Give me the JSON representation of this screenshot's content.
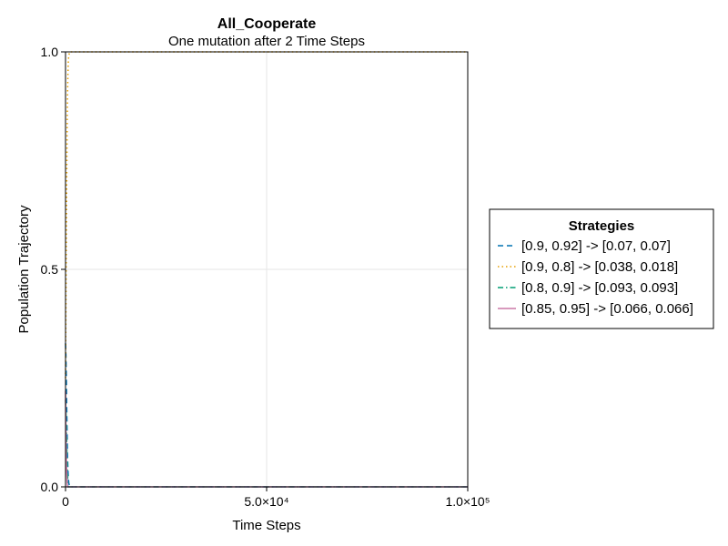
{
  "chart_data": {
    "type": "line",
    "title": "All_Cooperate",
    "subtitle": "One mutation after 2 Time Steps",
    "xlabel": "Time Steps",
    "ylabel": "Population Trajectory",
    "xlim": [
      0,
      100000
    ],
    "ylim": [
      0,
      1
    ],
    "grid": true,
    "x_ticks": [
      0,
      50000,
      100000
    ],
    "x_tick_labels": [
      "0",
      "5.0×10⁴",
      "1.0×10⁵"
    ],
    "y_ticks": [
      0,
      0.5,
      1
    ],
    "y_tick_labels": [
      "0.0",
      "0.5",
      "1.0"
    ],
    "legend": {
      "title": "Strategies",
      "placement": "right"
    },
    "series": [
      {
        "name": "[0.9, 0.92] -> [0.07, 0.07]",
        "color": "#0072b2",
        "dash": "dashed",
        "x": [
          0,
          100,
          200,
          300,
          400,
          500,
          600,
          700,
          800,
          1000,
          2000,
          100000
        ],
        "y": [
          0.33,
          0.3,
          0.25,
          0.18,
          0.12,
          0.07,
          0.04,
          0.02,
          0.01,
          0.0,
          0.0,
          0.0
        ]
      },
      {
        "name": "[0.9, 0.8] -> [0.038, 0.018]",
        "color": "#e69f00",
        "dash": "dotted",
        "x": [
          0,
          100,
          200,
          300,
          400,
          500,
          600,
          700,
          800,
          1000,
          2000,
          100000
        ],
        "y": [
          0.25,
          0.4,
          0.55,
          0.7,
          0.82,
          0.9,
          0.95,
          0.98,
          0.99,
          1.0,
          1.0,
          1.0
        ]
      },
      {
        "name": "[0.8, 0.9] -> [0.093, 0.093]",
        "color": "#009e73",
        "dash": "dashdot",
        "x": [
          0,
          100,
          200,
          300,
          400,
          500,
          600,
          700,
          800,
          1000,
          2000,
          100000
        ],
        "y": [
          0.2,
          0.18,
          0.14,
          0.1,
          0.06,
          0.03,
          0.01,
          0.0,
          0.0,
          0.0,
          0.0,
          0.0
        ]
      },
      {
        "name": "[0.85, 0.95] -> [0.066, 0.066]",
        "color": "#cc79a7",
        "dash": "solid",
        "x": [
          0,
          100,
          200,
          300,
          400,
          500,
          600,
          800,
          1000,
          2000,
          100000
        ],
        "y": [
          0.22,
          0.12,
          0.06,
          0.03,
          0.01,
          0.0,
          0.0,
          0.0,
          0.0,
          0.0,
          0.0
        ]
      }
    ]
  }
}
